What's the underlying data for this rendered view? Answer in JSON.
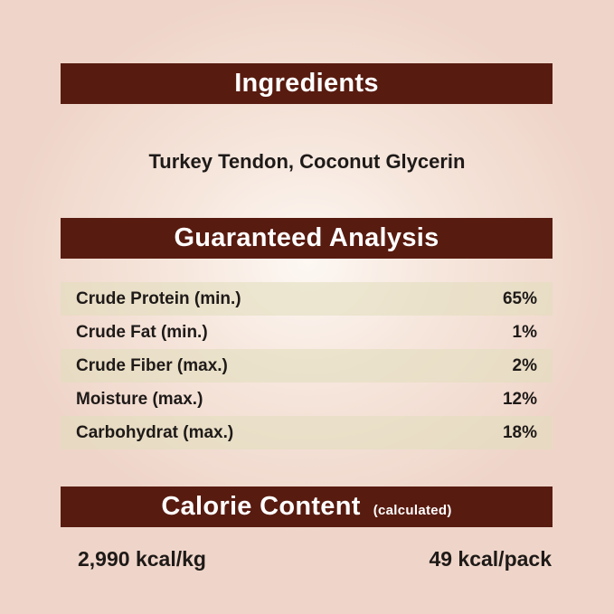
{
  "ingredients": {
    "heading": "Ingredients",
    "text": "Turkey Tendon, Coconut Glycerin"
  },
  "analysis": {
    "heading": "Guaranteed Analysis",
    "rows": [
      {
        "label": "Crude Protein (min.)",
        "value": "65%"
      },
      {
        "label": "Crude Fat (min.)",
        "value": "1%"
      },
      {
        "label": "Crude Fiber (max.)",
        "value": "2%"
      },
      {
        "label": "Moisture (max.)",
        "value": "12%"
      },
      {
        "label": "Carbohydrat (max.)",
        "value": "18%"
      }
    ]
  },
  "calorie": {
    "heading": "Calorie Content",
    "subheading": "(calculated)",
    "per_kg": "2,990 kcal/kg",
    "per_pack": "49 kcal/pack"
  },
  "colors": {
    "banner": "#581b10",
    "row_shade": "#e2debe",
    "background": "#efd5c9"
  }
}
